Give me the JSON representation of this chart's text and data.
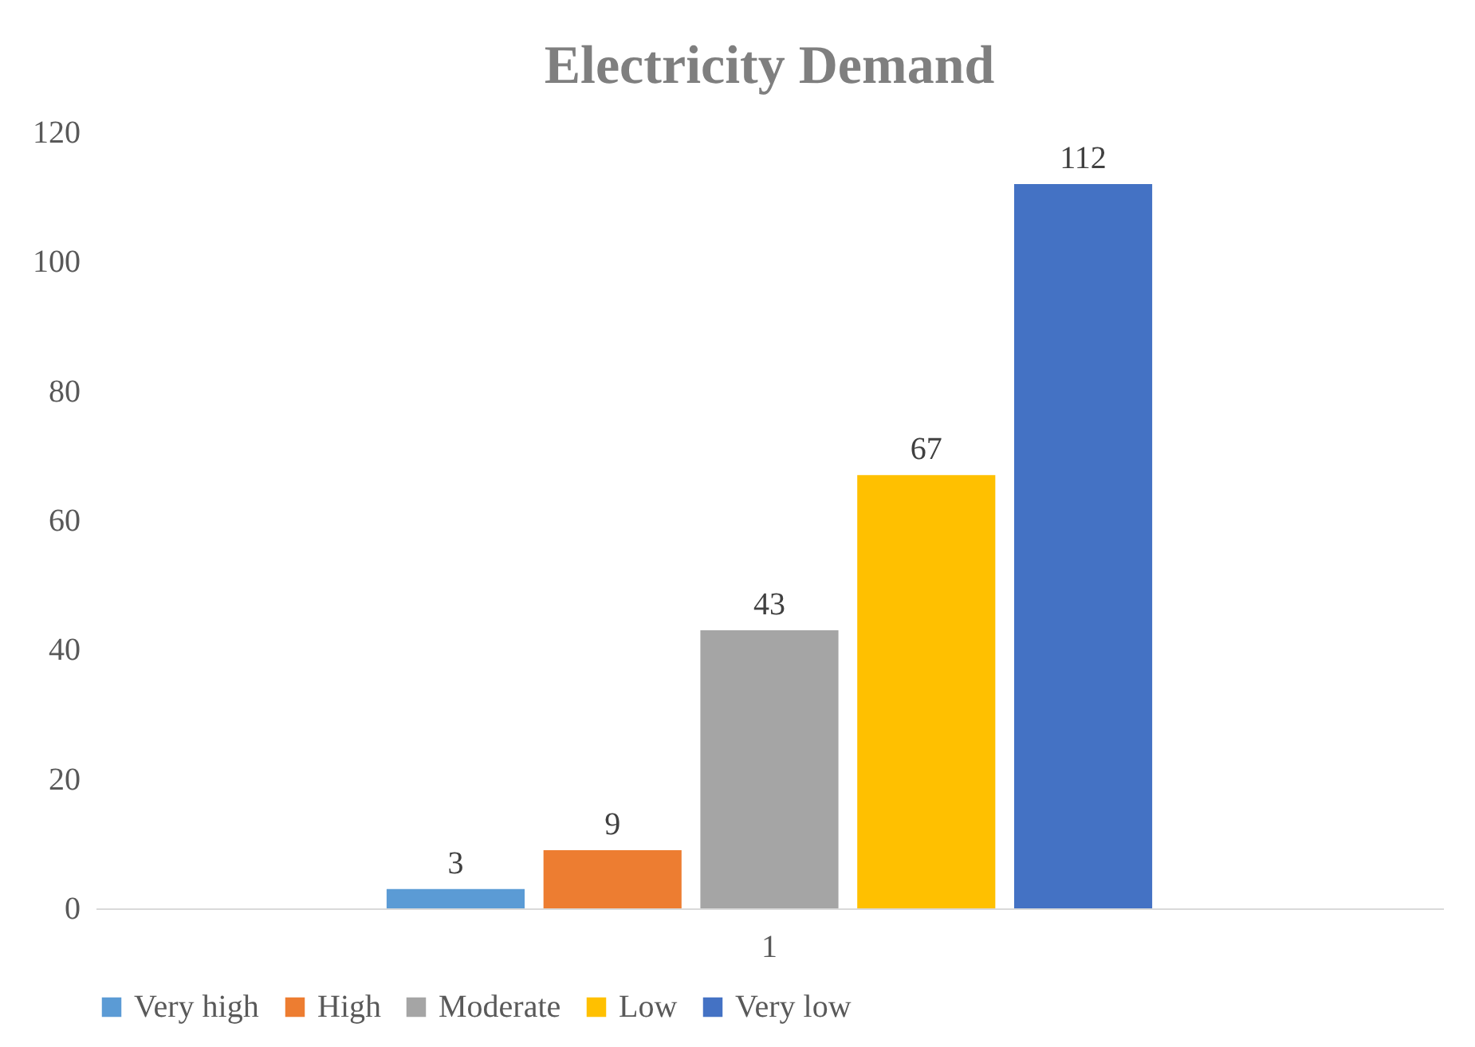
{
  "chart_data": {
    "type": "bar",
    "title": "Electricity Demand",
    "categories": [
      "1"
    ],
    "series": [
      {
        "name": "Very high",
        "color": "#5b9bd5",
        "values": [
          3
        ]
      },
      {
        "name": "High",
        "color": "#ed7d31",
        "values": [
          9
        ]
      },
      {
        "name": "Moderate",
        "color": "#a5a5a5",
        "values": [
          43
        ]
      },
      {
        "name": "Low",
        "color": "#ffc000",
        "values": [
          67
        ]
      },
      {
        "name": "Very low",
        "color": "#4472c4",
        "values": [
          112
        ]
      }
    ],
    "ylim": [
      0,
      120
    ],
    "yticks": [
      0,
      20,
      40,
      60,
      80,
      100,
      120
    ],
    "grid": false,
    "legend": "bottom",
    "data_labels": true
  }
}
